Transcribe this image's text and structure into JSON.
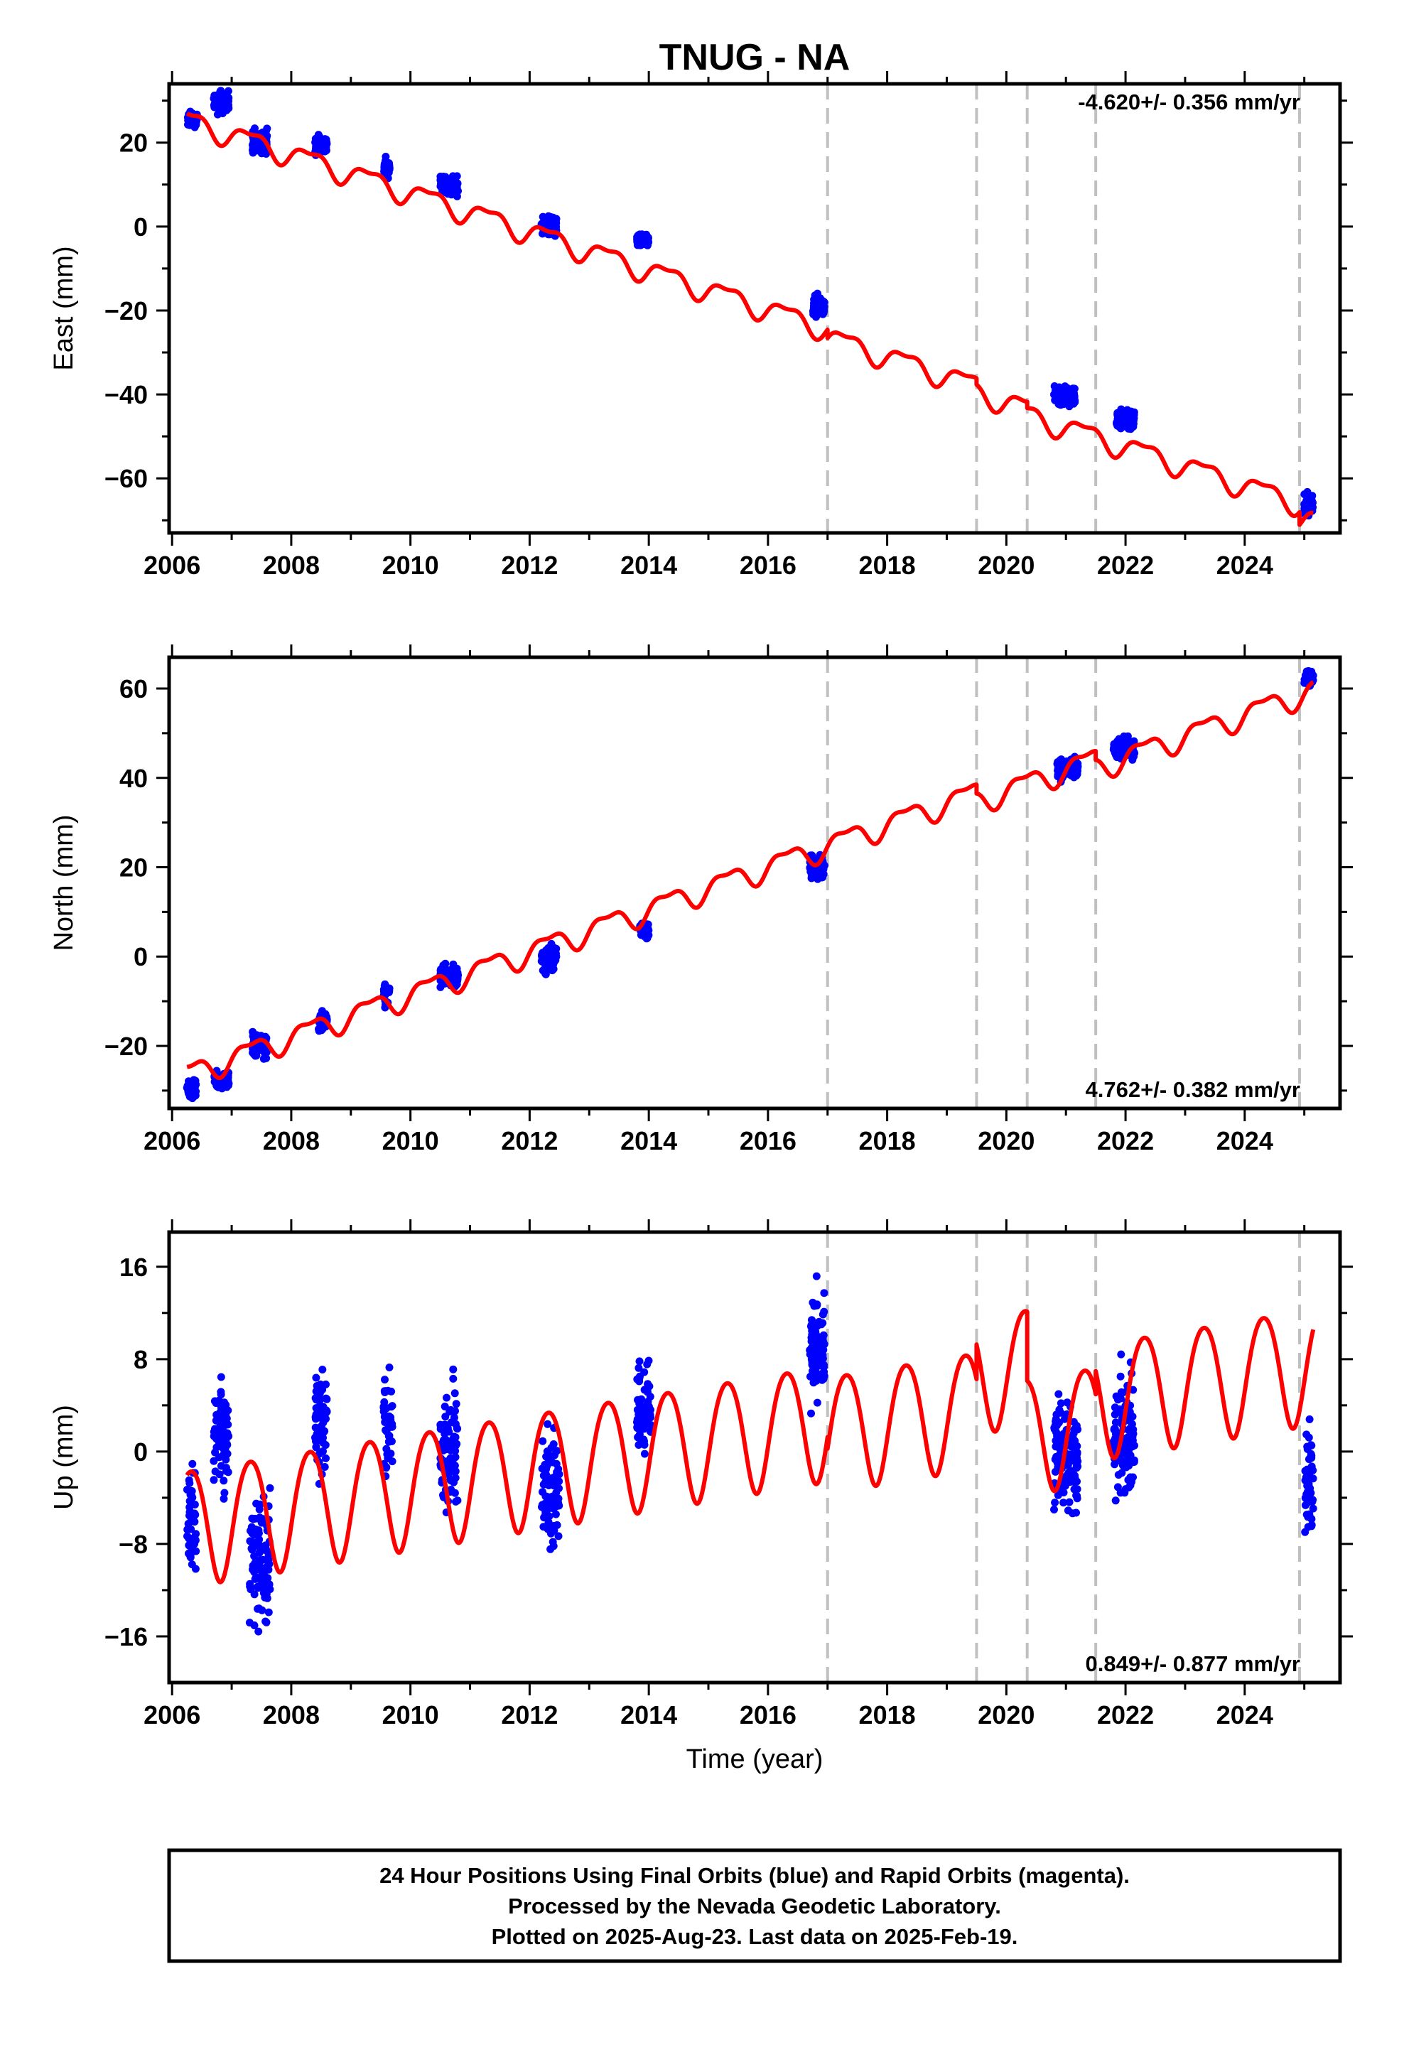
{
  "title": "TNUG - NA",
  "xlabel": "Time (year)",
  "caption": [
    "24 Hour Positions Using Final Orbits (blue) and Rapid Orbits (magenta).",
    "Processed by the Nevada Geodetic Laboratory.",
    "Plotted on 2025-Aug-23. Last data on 2025-Feb-19."
  ],
  "colors": {
    "data": "#0000ff",
    "model": "#ff0000",
    "steps": "#c0c0c0",
    "frame": "#000000"
  },
  "chart_data": [
    {
      "type": "scatter",
      "name": "east",
      "ylabel": "East (mm)",
      "rate_label": "-4.620+/- 0.356 mm/yr",
      "xlim": [
        2005.95,
        2025.6
      ],
      "ylim": [
        -73,
        34
      ],
      "xticks": [
        2006,
        2008,
        2010,
        2012,
        2014,
        2016,
        2018,
        2020,
        2022,
        2024
      ],
      "yticks": [
        -60,
        -40,
        -20,
        0,
        20
      ],
      "step_lines": [
        2017.0,
        2019.5,
        2020.35,
        2021.5,
        2024.92
      ],
      "model": {
        "trend_mm_per_yr": -4.62,
        "value_2006": 26.5,
        "annual_amp": 2.5,
        "semiannual_amp": 1.0,
        "offsets": [
          [
            2017.0,
            -2
          ],
          [
            2019.5,
            -1.5
          ],
          [
            2020.35,
            -1.5
          ],
          [
            2021.5,
            0
          ],
          [
            2024.92,
            -3
          ]
        ]
      },
      "clusters": [
        {
          "t0": 2006.25,
          "t1": 2006.42,
          "y": 25.5,
          "spread": 1.5
        },
        {
          "t0": 2006.7,
          "t1": 2006.95,
          "y": 29.5,
          "spread": 2.2
        },
        {
          "t0": 2007.35,
          "t1": 2007.6,
          "y": 20.5,
          "spread": 2.5
        },
        {
          "t0": 2008.4,
          "t1": 2008.6,
          "y": 19.5,
          "spread": 2.0
        },
        {
          "t0": 2009.55,
          "t1": 2009.65,
          "y": 14.0,
          "spread": 1.8
        },
        {
          "t0": 2010.5,
          "t1": 2010.8,
          "y": 10.0,
          "spread": 2.0
        },
        {
          "t0": 2012.2,
          "t1": 2012.45,
          "y": 0.0,
          "spread": 2.0
        },
        {
          "t0": 2013.8,
          "t1": 2014.0,
          "y": -3.5,
          "spread": 1.2
        },
        {
          "t0": 2016.75,
          "t1": 2016.95,
          "y": -19.0,
          "spread": 2.2
        },
        {
          "t0": 2020.8,
          "t1": 2021.15,
          "y": -40.5,
          "spread": 1.8
        },
        {
          "t0": 2021.85,
          "t1": 2022.15,
          "y": -46.0,
          "spread": 2.0
        },
        {
          "t0": 2025.0,
          "t1": 2025.15,
          "y": -66.0,
          "spread": 2.2
        }
      ]
    },
    {
      "type": "scatter",
      "name": "north",
      "ylabel": "North (mm)",
      "rate_label": "4.762+/- 0.382 mm/yr",
      "xlim": [
        2005.95,
        2025.6
      ],
      "ylim": [
        -34,
        67
      ],
      "xticks": [
        2006,
        2008,
        2010,
        2012,
        2014,
        2016,
        2018,
        2020,
        2022,
        2024
      ],
      "yticks": [
        -20,
        0,
        20,
        40,
        60
      ],
      "step_lines": [
        2017.0,
        2019.5,
        2020.35,
        2021.5,
        2024.92
      ],
      "model": {
        "trend_mm_per_yr": 4.762,
        "value_2006": -27.5,
        "annual_amp": 2.5,
        "semiannual_amp": 1.0,
        "offsets": [
          [
            2017.0,
            0
          ],
          [
            2019.5,
            -2
          ],
          [
            2020.35,
            0
          ],
          [
            2021.5,
            -2
          ],
          [
            2024.92,
            0
          ]
        ]
      },
      "clusters": [
        {
          "t0": 2006.25,
          "t1": 2006.4,
          "y": -29.5,
          "spread": 2.0
        },
        {
          "t0": 2006.7,
          "t1": 2006.95,
          "y": -27.5,
          "spread": 1.8
        },
        {
          "t0": 2007.35,
          "t1": 2007.6,
          "y": -20.0,
          "spread": 2.5
        },
        {
          "t0": 2008.45,
          "t1": 2008.6,
          "y": -14.5,
          "spread": 2.0
        },
        {
          "t0": 2009.55,
          "t1": 2009.65,
          "y": -8.5,
          "spread": 2.0
        },
        {
          "t0": 2010.5,
          "t1": 2010.8,
          "y": -4.5,
          "spread": 1.8
        },
        {
          "t0": 2012.2,
          "t1": 2012.45,
          "y": -0.5,
          "spread": 2.5
        },
        {
          "t0": 2013.85,
          "t1": 2014.0,
          "y": 6.0,
          "spread": 1.5
        },
        {
          "t0": 2016.7,
          "t1": 2016.95,
          "y": 20.0,
          "spread": 2.5
        },
        {
          "t0": 2020.85,
          "t1": 2021.2,
          "y": 42.0,
          "spread": 2.0
        },
        {
          "t0": 2021.8,
          "t1": 2022.15,
          "y": 46.5,
          "spread": 1.8
        },
        {
          "t0": 2025.0,
          "t1": 2025.15,
          "y": 62.5,
          "spread": 1.5
        }
      ]
    },
    {
      "type": "scatter",
      "name": "up",
      "ylabel": "Up (mm)",
      "rate_label": "0.849+/- 0.877 mm/yr",
      "xlim": [
        2005.95,
        2025.6
      ],
      "ylim": [
        -20,
        19
      ],
      "xticks": [
        2006,
        2008,
        2010,
        2012,
        2014,
        2016,
        2018,
        2020,
        2022,
        2024
      ],
      "yticks": [
        -16,
        -8,
        0,
        8,
        16
      ],
      "step_lines": [
        2017.0,
        2019.5,
        2020.35,
        2021.5,
        2024.92
      ],
      "model": {
        "trend_mm_per_yr": 0.849,
        "value_2006": -6.5,
        "annual_amp": 5.0,
        "semiannual_amp": 0.5,
        "offsets": [
          [
            2017.0,
            -1
          ],
          [
            2019.5,
            3
          ],
          [
            2020.35,
            -6
          ],
          [
            2021.5,
            2
          ],
          [
            2024.92,
            0
          ]
        ]
      },
      "clusters": [
        {
          "t0": 2006.25,
          "t1": 2006.4,
          "y": -6.0,
          "spread": 4.5
        },
        {
          "t0": 2006.7,
          "t1": 2006.95,
          "y": 1.5,
          "spread": 4.0
        },
        {
          "t0": 2007.3,
          "t1": 2007.65,
          "y": -9.5,
          "spread": 5.0
        },
        {
          "t0": 2008.4,
          "t1": 2008.6,
          "y": 3.0,
          "spread": 4.0
        },
        {
          "t0": 2009.55,
          "t1": 2009.7,
          "y": 2.0,
          "spread": 3.5
        },
        {
          "t0": 2010.5,
          "t1": 2010.8,
          "y": 0.0,
          "spread": 4.5
        },
        {
          "t0": 2012.2,
          "t1": 2012.5,
          "y": -3.0,
          "spread": 4.5
        },
        {
          "t0": 2013.8,
          "t1": 2014.05,
          "y": 3.5,
          "spread": 3.5
        },
        {
          "t0": 2016.7,
          "t1": 2016.95,
          "y": 9.0,
          "spread": 4.5
        },
        {
          "t0": 2020.8,
          "t1": 2021.2,
          "y": -0.5,
          "spread": 4.0
        },
        {
          "t0": 2021.8,
          "t1": 2022.15,
          "y": 1.0,
          "spread": 4.5
        },
        {
          "t0": 2025.0,
          "t1": 2025.15,
          "y": -2.5,
          "spread": 4.5
        }
      ]
    }
  ]
}
